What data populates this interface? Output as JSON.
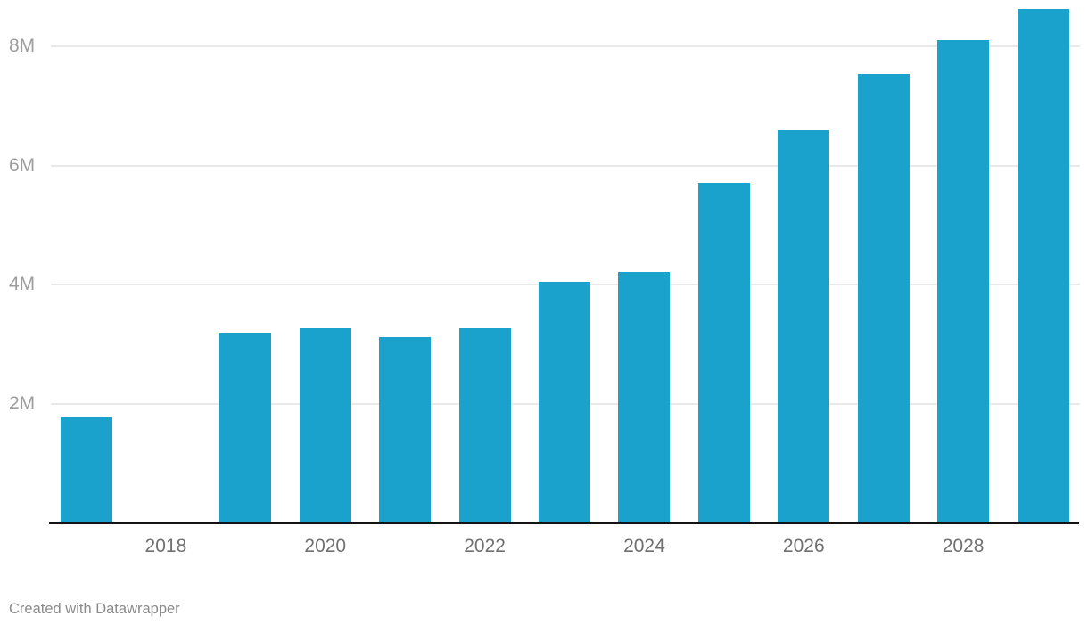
{
  "chart_data": {
    "type": "bar",
    "title": "",
    "xlabel": "",
    "ylabel": "",
    "unit": "M",
    "categories": [
      "2017",
      "2018",
      "2019",
      "2020",
      "2021",
      "2022",
      "2023",
      "2024",
      "2025",
      "2026",
      "2027",
      "2028",
      "2029"
    ],
    "values": [
      1.77,
      null,
      3.19,
      3.26,
      3.11,
      3.26,
      4.04,
      4.21,
      5.71,
      6.59,
      7.53,
      8.1,
      8.63
    ],
    "ylim": [
      0,
      8.7
    ],
    "y_ticks": [
      {
        "value": 2,
        "label": "2M"
      },
      {
        "value": 4,
        "label": "4M"
      },
      {
        "value": 6,
        "label": "6M"
      },
      {
        "value": 8,
        "label": "8M"
      }
    ],
    "x_ticks": [
      {
        "category": "2018",
        "label": "2018"
      },
      {
        "category": "2020",
        "label": "2020"
      },
      {
        "category": "2022",
        "label": "2022"
      },
      {
        "category": "2024",
        "label": "2024"
      },
      {
        "category": "2026",
        "label": "2026"
      },
      {
        "category": "2028",
        "label": "2028"
      }
    ],
    "grid": "horizontal",
    "legend": "none"
  },
  "colors": {
    "bar": "#1AA2CC",
    "gridline": "#E9E9E9",
    "axis_line": "#131313",
    "y_tick_label": "#9D9D9D",
    "x_tick_label": "#707070",
    "attribution_text": "#8A8A8A",
    "background": "#FFFFFF"
  },
  "footer": {
    "attribution": "Created with Datawrapper"
  }
}
